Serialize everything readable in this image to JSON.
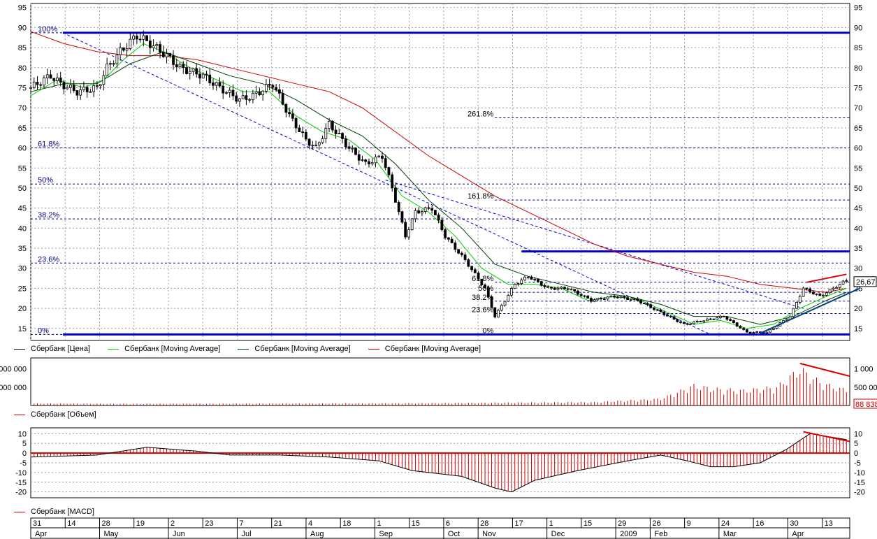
{
  "chart_data": [
    {
      "type": "candlestick",
      "title": "",
      "ylim": [
        12,
        96
      ],
      "y_ticks": [
        15,
        20,
        25,
        30,
        35,
        40,
        45,
        50,
        55,
        60,
        65,
        70,
        75,
        80,
        85,
        90,
        95
      ],
      "grid": true,
      "last_price_label": "26,67",
      "legend": [
        {
          "name": "Сбербанк [Цена]",
          "color": "#000000"
        },
        {
          "name": "Сбербанк [Moving Average]",
          "color": "#00cc00"
        },
        {
          "name": "Сбербанк [Moving Average]",
          "color": "#004000"
        },
        {
          "name": "Сбербанк [Moving Average]",
          "color": "#cc0000"
        }
      ],
      "price_path": [
        {
          "x": 0,
          "y": 75
        },
        {
          "x": 6,
          "y": 78
        },
        {
          "x": 9,
          "y": 76
        },
        {
          "x": 14,
          "y": 74
        },
        {
          "x": 20,
          "y": 75
        },
        {
          "x": 23,
          "y": 80
        },
        {
          "x": 27,
          "y": 84
        },
        {
          "x": 32,
          "y": 88
        },
        {
          "x": 36,
          "y": 86
        },
        {
          "x": 41,
          "y": 83
        },
        {
          "x": 45,
          "y": 80
        },
        {
          "x": 52,
          "y": 78
        },
        {
          "x": 57,
          "y": 75
        },
        {
          "x": 63,
          "y": 72
        },
        {
          "x": 67,
          "y": 73
        },
        {
          "x": 73,
          "y": 76
        },
        {
          "x": 78,
          "y": 68
        },
        {
          "x": 83,
          "y": 62
        },
        {
          "x": 86,
          "y": 60
        },
        {
          "x": 90,
          "y": 66
        },
        {
          "x": 96,
          "y": 60
        },
        {
          "x": 101,
          "y": 56
        },
        {
          "x": 106,
          "y": 58
        },
        {
          "x": 109,
          "y": 50
        },
        {
          "x": 113,
          "y": 38
        },
        {
          "x": 116,
          "y": 44
        },
        {
          "x": 121,
          "y": 45
        },
        {
          "x": 125,
          "y": 38
        },
        {
          "x": 131,
          "y": 32
        },
        {
          "x": 137,
          "y": 25
        },
        {
          "x": 140,
          "y": 18
        },
        {
          "x": 146,
          "y": 26
        },
        {
          "x": 150,
          "y": 28
        },
        {
          "x": 156,
          "y": 25
        },
        {
          "x": 162,
          "y": 25
        },
        {
          "x": 169,
          "y": 22
        },
        {
          "x": 176,
          "y": 23
        },
        {
          "x": 183,
          "y": 22
        },
        {
          "x": 190,
          "y": 19
        },
        {
          "x": 197,
          "y": 16
        },
        {
          "x": 203,
          "y": 17
        },
        {
          "x": 209,
          "y": 18
        },
        {
          "x": 216,
          "y": 14
        },
        {
          "x": 222,
          "y": 14
        },
        {
          "x": 229,
          "y": 18
        },
        {
          "x": 233,
          "y": 25
        },
        {
          "x": 238,
          "y": 23
        },
        {
          "x": 242,
          "y": 25
        },
        {
          "x": 246,
          "y": 27
        }
      ],
      "ma_fast": [
        {
          "x": 0,
          "y": 73
        },
        {
          "x": 8,
          "y": 77
        },
        {
          "x": 16,
          "y": 75
        },
        {
          "x": 22,
          "y": 77
        },
        {
          "x": 28,
          "y": 82
        },
        {
          "x": 34,
          "y": 86
        },
        {
          "x": 40,
          "y": 84
        },
        {
          "x": 48,
          "y": 80
        },
        {
          "x": 56,
          "y": 77
        },
        {
          "x": 64,
          "y": 74
        },
        {
          "x": 72,
          "y": 74
        },
        {
          "x": 80,
          "y": 68
        },
        {
          "x": 88,
          "y": 64
        },
        {
          "x": 96,
          "y": 62
        },
        {
          "x": 104,
          "y": 57
        },
        {
          "x": 112,
          "y": 48
        },
        {
          "x": 120,
          "y": 44
        },
        {
          "x": 128,
          "y": 38
        },
        {
          "x": 136,
          "y": 30
        },
        {
          "x": 144,
          "y": 26
        },
        {
          "x": 152,
          "y": 26
        },
        {
          "x": 160,
          "y": 25
        },
        {
          "x": 168,
          "y": 22
        },
        {
          "x": 176,
          "y": 23
        },
        {
          "x": 184,
          "y": 22
        },
        {
          "x": 192,
          "y": 19
        },
        {
          "x": 200,
          "y": 16
        },
        {
          "x": 208,
          "y": 17
        },
        {
          "x": 216,
          "y": 15
        },
        {
          "x": 224,
          "y": 16
        },
        {
          "x": 232,
          "y": 20
        },
        {
          "x": 240,
          "y": 23
        },
        {
          "x": 246,
          "y": 25
        }
      ],
      "ma_slow": [
        {
          "x": 0,
          "y": 74
        },
        {
          "x": 10,
          "y": 76
        },
        {
          "x": 20,
          "y": 76
        },
        {
          "x": 30,
          "y": 81
        },
        {
          "x": 40,
          "y": 84
        },
        {
          "x": 50,
          "y": 81
        },
        {
          "x": 60,
          "y": 78
        },
        {
          "x": 70,
          "y": 76
        },
        {
          "x": 80,
          "y": 72
        },
        {
          "x": 90,
          "y": 67
        },
        {
          "x": 100,
          "y": 63
        },
        {
          "x": 110,
          "y": 56
        },
        {
          "x": 120,
          "y": 47
        },
        {
          "x": 130,
          "y": 40
        },
        {
          "x": 140,
          "y": 31
        },
        {
          "x": 150,
          "y": 28
        },
        {
          "x": 160,
          "y": 26
        },
        {
          "x": 170,
          "y": 24
        },
        {
          "x": 180,
          "y": 23
        },
        {
          "x": 190,
          "y": 21
        },
        {
          "x": 200,
          "y": 18
        },
        {
          "x": 210,
          "y": 18
        },
        {
          "x": 220,
          "y": 16
        },
        {
          "x": 230,
          "y": 18
        },
        {
          "x": 240,
          "y": 22
        },
        {
          "x": 246,
          "y": 24
        }
      ],
      "ma_long": [
        {
          "x": 0,
          "y": 89
        },
        {
          "x": 10,
          "y": 86
        },
        {
          "x": 20,
          "y": 84
        },
        {
          "x": 30,
          "y": 83
        },
        {
          "x": 40,
          "y": 83
        },
        {
          "x": 50,
          "y": 82
        },
        {
          "x": 60,
          "y": 80
        },
        {
          "x": 70,
          "y": 78
        },
        {
          "x": 80,
          "y": 76
        },
        {
          "x": 90,
          "y": 74
        },
        {
          "x": 100,
          "y": 70
        },
        {
          "x": 110,
          "y": 64
        },
        {
          "x": 120,
          "y": 58
        },
        {
          "x": 130,
          "y": 53
        },
        {
          "x": 140,
          "y": 48
        },
        {
          "x": 150,
          "y": 44
        },
        {
          "x": 160,
          "y": 40
        },
        {
          "x": 170,
          "y": 36
        },
        {
          "x": 180,
          "y": 33
        },
        {
          "x": 190,
          "y": 31
        },
        {
          "x": 200,
          "y": 29
        },
        {
          "x": 210,
          "y": 28
        },
        {
          "x": 220,
          "y": 26
        },
        {
          "x": 230,
          "y": 25
        },
        {
          "x": 240,
          "y": 24
        },
        {
          "x": 246,
          "y": 25
        }
      ],
      "fib_left": [
        {
          "label": "100%",
          "y": 88.7
        },
        {
          "label": "61.8%",
          "y": 60
        },
        {
          "label": "50%",
          "y": 51
        },
        {
          "label": "38.2%",
          "y": 42.3
        },
        {
          "label": "23.6%",
          "y": 31.3
        },
        {
          "label": "0%",
          "y": 13.5
        }
      ],
      "fib_right": [
        {
          "label": "261.8%",
          "y": 67.5
        },
        {
          "label": "161.8%",
          "y": 47
        },
        {
          "label": "61.8%",
          "y": 26.5
        },
        {
          "label": "50%",
          "y": 24
        },
        {
          "label": "38.2%",
          "y": 21.8
        },
        {
          "label": "23.6%",
          "y": 18.7
        },
        {
          "label": "0%",
          "y": 13.5
        }
      ],
      "hlines": [
        88.7,
        34.2,
        13.5
      ]
    },
    {
      "type": "bar",
      "name": "Сбербанк [Объем]",
      "y_ticks": [
        "1 000",
        "500 00"
      ],
      "left_ticks": [
        "000 000",
        "000 000"
      ],
      "last_value_label": "88 838",
      "bars": [
        {
          "x": 0,
          "y": 60000
        },
        {
          "x": 30,
          "y": 50000
        },
        {
          "x": 60,
          "y": 55000
        },
        {
          "x": 90,
          "y": 60000
        },
        {
          "x": 120,
          "y": 70000
        },
        {
          "x": 150,
          "y": 90000
        },
        {
          "x": 170,
          "y": 100000
        },
        {
          "x": 190,
          "y": 200000
        },
        {
          "x": 200,
          "y": 600000
        },
        {
          "x": 206,
          "y": 500000
        },
        {
          "x": 215,
          "y": 450000
        },
        {
          "x": 225,
          "y": 550000
        },
        {
          "x": 232,
          "y": 1100000
        },
        {
          "x": 238,
          "y": 700000
        },
        {
          "x": 244,
          "y": 500000
        }
      ]
    },
    {
      "type": "bar",
      "name": "Сбербанк [MACD]",
      "y_ticks": [
        "10",
        "5",
        "0",
        "-5",
        "-10",
        "-15",
        "-20"
      ],
      "ylim": [
        -23,
        13
      ],
      "macd_points": [
        {
          "x": 0,
          "y": -2
        },
        {
          "x": 20,
          "y": -1
        },
        {
          "x": 35,
          "y": 3
        },
        {
          "x": 50,
          "y": 1
        },
        {
          "x": 60,
          "y": -1
        },
        {
          "x": 75,
          "y": -1
        },
        {
          "x": 90,
          "y": -2
        },
        {
          "x": 105,
          "y": -4
        },
        {
          "x": 115,
          "y": -9
        },
        {
          "x": 130,
          "y": -12
        },
        {
          "x": 140,
          "y": -18
        },
        {
          "x": 145,
          "y": -20
        },
        {
          "x": 152,
          "y": -14
        },
        {
          "x": 165,
          "y": -9
        },
        {
          "x": 180,
          "y": -4
        },
        {
          "x": 190,
          "y": -1
        },
        {
          "x": 198,
          "y": -4
        },
        {
          "x": 205,
          "y": -7
        },
        {
          "x": 212,
          "y": -7
        },
        {
          "x": 220,
          "y": -5
        },
        {
          "x": 228,
          "y": 2
        },
        {
          "x": 235,
          "y": 10
        },
        {
          "x": 246,
          "y": 7
        }
      ]
    }
  ],
  "x_axis": {
    "day_ticks": [
      "31",
      "14",
      "28",
      "19",
      "2",
      "23",
      "7",
      "21",
      "4",
      "18",
      "1",
      "15",
      "6",
      "28",
      "17",
      "1",
      "15",
      "29",
      "26",
      "9",
      "24",
      "16",
      "30",
      "13"
    ],
    "month_labels": [
      "Apr",
      "May",
      "Jun",
      "Jul",
      "Aug",
      "Sep",
      "Oct",
      "Nov",
      "Dec",
      "2009",
      "Feb",
      "Mar",
      "Apr"
    ]
  },
  "legend_volume": "Сбербанк [Объем]",
  "legend_macd": "Сбербанк [MACD]",
  "colors": {
    "price": "#000000",
    "ma_fast": "#00cc00",
    "ma_slow": "#004000",
    "ma_long": "#cc0000",
    "fib": "#000080",
    "hline": "#0000cc",
    "volume": "#cc0000",
    "grid": "#9a9a9a"
  }
}
